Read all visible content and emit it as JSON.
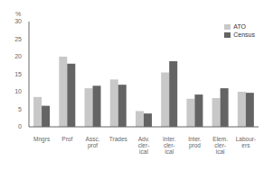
{
  "chart_data": {
    "type": "bar",
    "categories": [
      "Mngrs",
      "Prof",
      "Assc.\nprof",
      "Trades",
      "Adv.\ncler-\nical",
      "Inter.\ncler-\nical",
      "Inter.\nprod",
      "Elem.\ncler-\nical",
      "Labour-\ners"
    ],
    "series": [
      {
        "name": "ATO",
        "color": "#c8c8c8",
        "values": [
          8.5,
          20.0,
          11.0,
          13.5,
          4.5,
          15.5,
          8.0,
          8.2,
          10.0
        ]
      },
      {
        "name": "Census",
        "color": "#646464",
        "values": [
          6.0,
          18.0,
          11.7,
          12.0,
          3.8,
          18.7,
          9.2,
          11.0,
          9.7
        ]
      }
    ],
    "ylabel": "%",
    "ylim": [
      0,
      30
    ],
    "yticks": [
      0,
      5,
      10,
      15,
      20,
      25,
      30
    ],
    "grid": false,
    "legend": "upper right"
  }
}
